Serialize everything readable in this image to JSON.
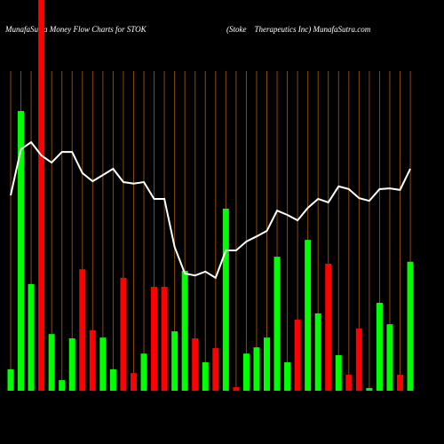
{
  "chart_data": {
    "type": "bar-line",
    "title": "MunafaSutra  Money Flow  Charts for STOK",
    "subtitle": "(Stoke    Therapeutics Inc) MunafaSutra.com",
    "categories": [
      null,
      null,
      null,
      null,
      null,
      null,
      null,
      null,
      null,
      null,
      null,
      null,
      null,
      null,
      null,
      null,
      null,
      null,
      null,
      null,
      null,
      null,
      null,
      null,
      null,
      null,
      null,
      null,
      null,
      null,
      null,
      null,
      null,
      null,
      null,
      null,
      null,
      null,
      null,
      null
    ],
    "bars": {
      "values": [
        5.5,
        71.6,
        27.3,
        100,
        14.5,
        2.7,
        13.4,
        31.1,
        15.5,
        13.6,
        5.5,
        28.9,
        4.5,
        9.5,
        26.6,
        26.6,
        15.2,
        30.7,
        13.4,
        7.3,
        10.9,
        46.6,
        0.9,
        9.5,
        11.1,
        13.6,
        34.3,
        7.3,
        18.2,
        38.6,
        19.8,
        32.5,
        9.1,
        4.1,
        15.9,
        0.7,
        22.5,
        17,
        4.1,
        33
      ],
      "colors": [
        "#00ff00",
        "#00ff00",
        "#00ff00",
        "#ff0000",
        "#00ff00",
        "#00ff00",
        "#00ff00",
        "#ff0000",
        "#ff0000",
        "#00ff00",
        "#00ff00",
        "#ff0000",
        "#ff0000",
        "#00ff00",
        "#ff0000",
        "#ff0000",
        "#00ff00",
        "#00ff00",
        "#ff0000",
        "#00ff00",
        "#ff0000",
        "#00ff00",
        "#ff0000",
        "#00ff00",
        "#00ff00",
        "#00ff00",
        "#00ff00",
        "#00ff00",
        "#ff0000",
        "#00ff00",
        "#00ff00",
        "#ff0000",
        "#00ff00",
        "#ff0000",
        "#ff0000",
        "#00ff00",
        "#00ff00",
        "#00ff00",
        "#ff0000",
        "#00ff00"
      ]
    },
    "line": {
      "color": "#ffffff",
      "values": [
        50,
        61.8,
        63.6,
        60.2,
        58.4,
        61.1,
        61.1,
        55.7,
        53.6,
        55.2,
        56.8,
        53.4,
        53,
        53.4,
        49.1,
        49.1,
        36.8,
        30,
        29.5,
        30.5,
        28.9,
        35.9,
        35.9,
        38.2,
        39.5,
        40.9,
        46.1,
        45,
        43.6,
        46.8,
        49.1,
        48.2,
        52.3,
        51.6,
        49.3,
        48.6,
        51.6,
        51.8,
        51.4,
        56.8
      ]
    },
    "ylim": [
      0,
      100
    ]
  }
}
